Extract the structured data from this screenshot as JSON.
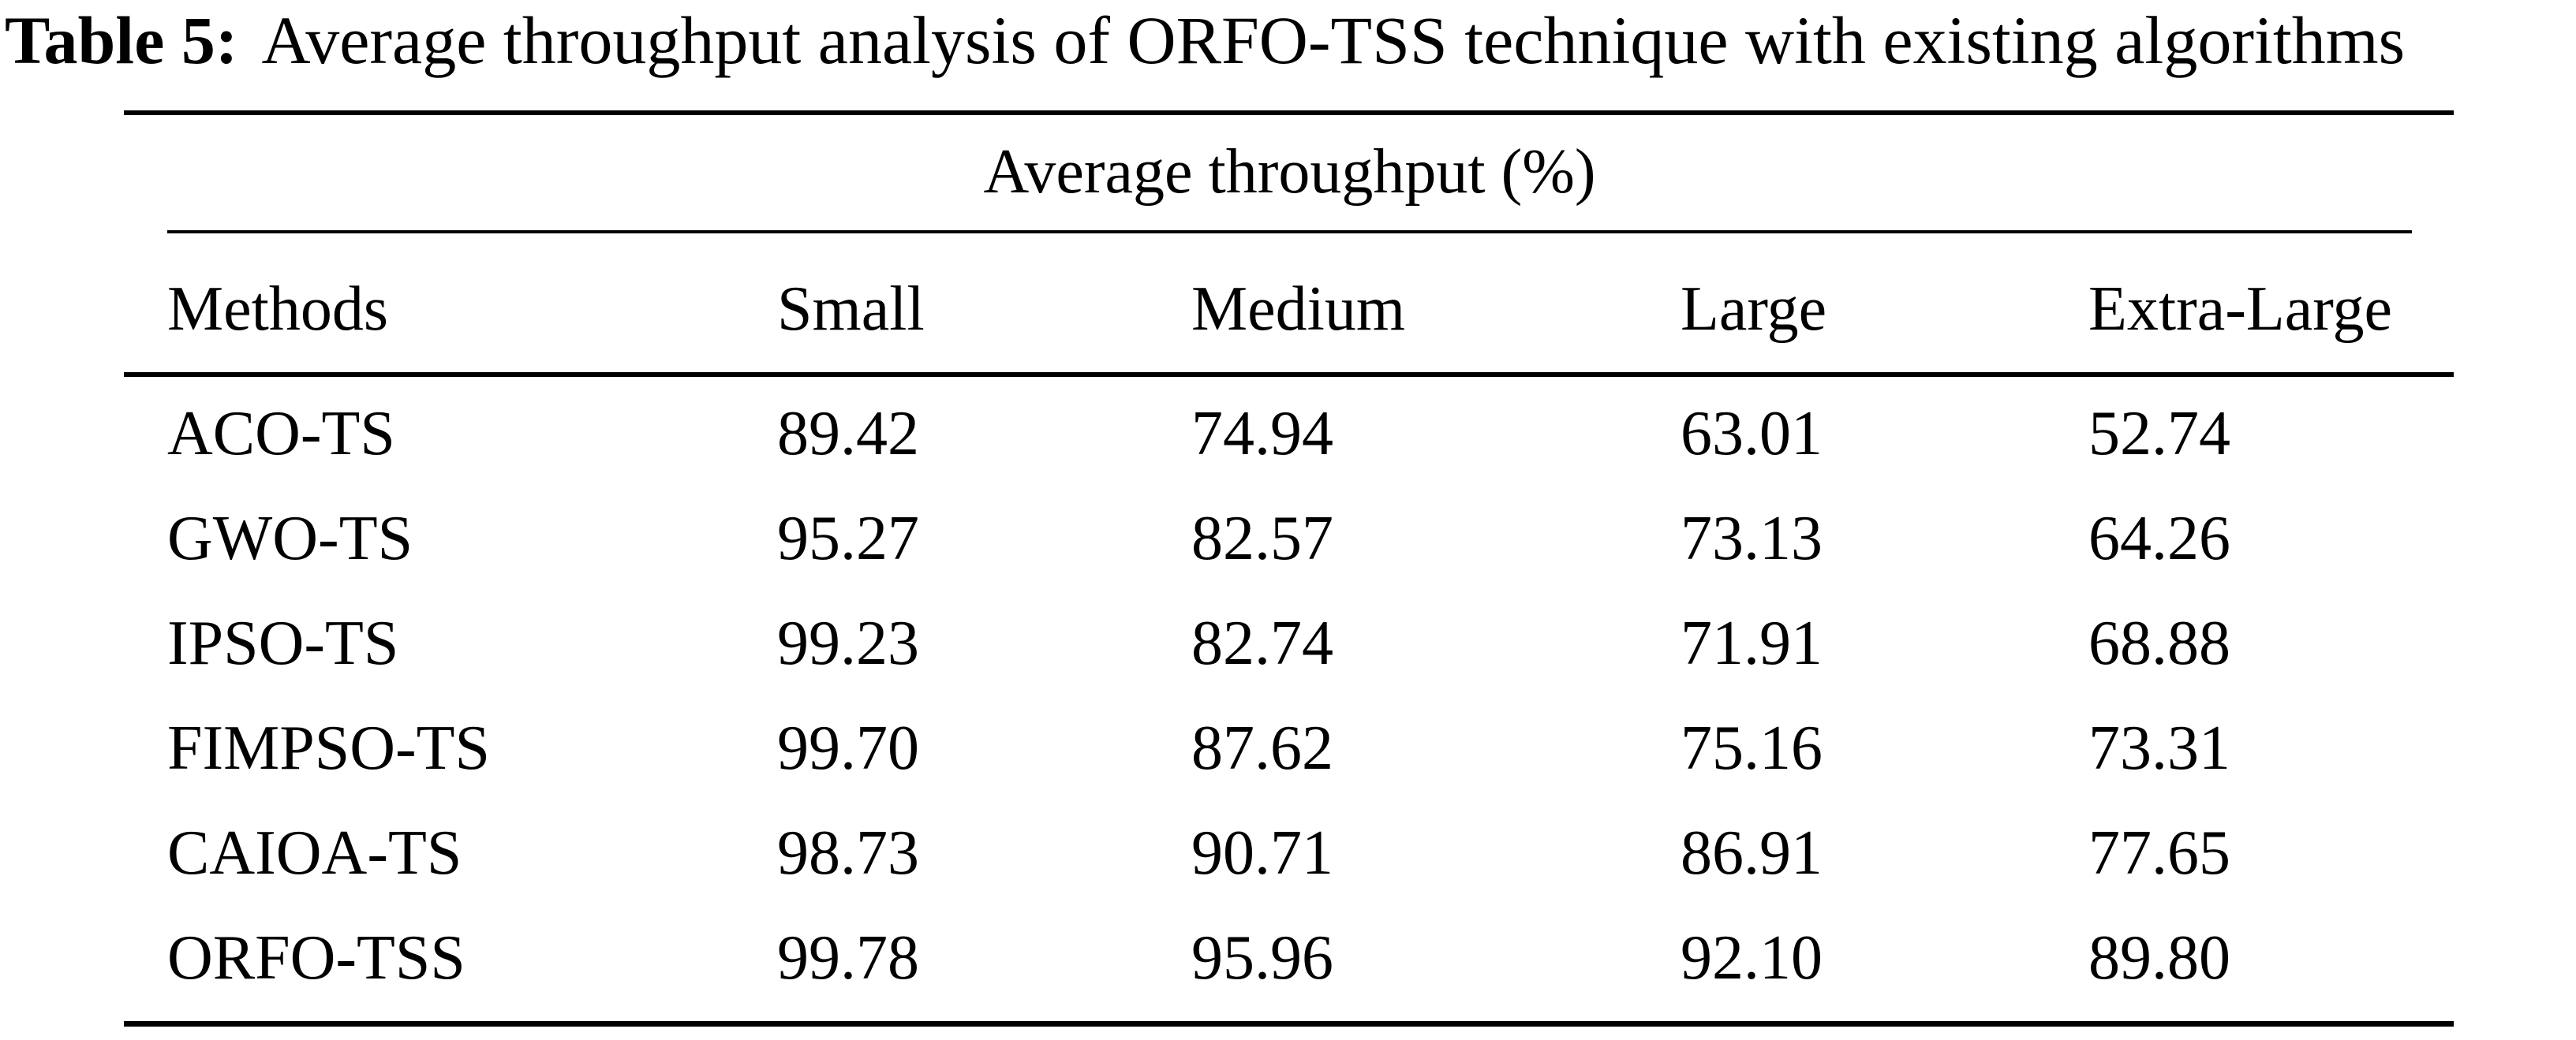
{
  "page": {
    "background": "#ffffff",
    "text_color": "#000000"
  },
  "caption": {
    "label": "Table 5:",
    "text": "Average throughput analysis of ORFO-TSS technique with existing algorithms"
  },
  "chart_data": {
    "type": "table",
    "title": "Average throughput analysis of ORFO-TSS technique with existing algorithms",
    "group_header": "Average throughput (%)",
    "columns": [
      "Methods",
      "Small",
      "Medium",
      "Large",
      "Extra-Large"
    ],
    "rows": [
      {
        "method": "ACO-TS",
        "values": [
          "89.42",
          "74.94",
          "63.01",
          "52.74"
        ]
      },
      {
        "method": "GWO-TS",
        "values": [
          "95.27",
          "82.57",
          "73.13",
          "64.26"
        ]
      },
      {
        "method": "IPSO-TS",
        "values": [
          "99.23",
          "82.74",
          "71.91",
          "68.88"
        ]
      },
      {
        "method": "FIMPSO-TS",
        "values": [
          "99.70",
          "87.62",
          "75.16",
          "73.31"
        ]
      },
      {
        "method": "CAIOA-TS",
        "values": [
          "98.73",
          "90.71",
          "86.91",
          "77.65"
        ]
      },
      {
        "method": "ORFO-TSS",
        "values": [
          "99.78",
          "95.96",
          "92.10",
          "89.80"
        ]
      }
    ]
  }
}
